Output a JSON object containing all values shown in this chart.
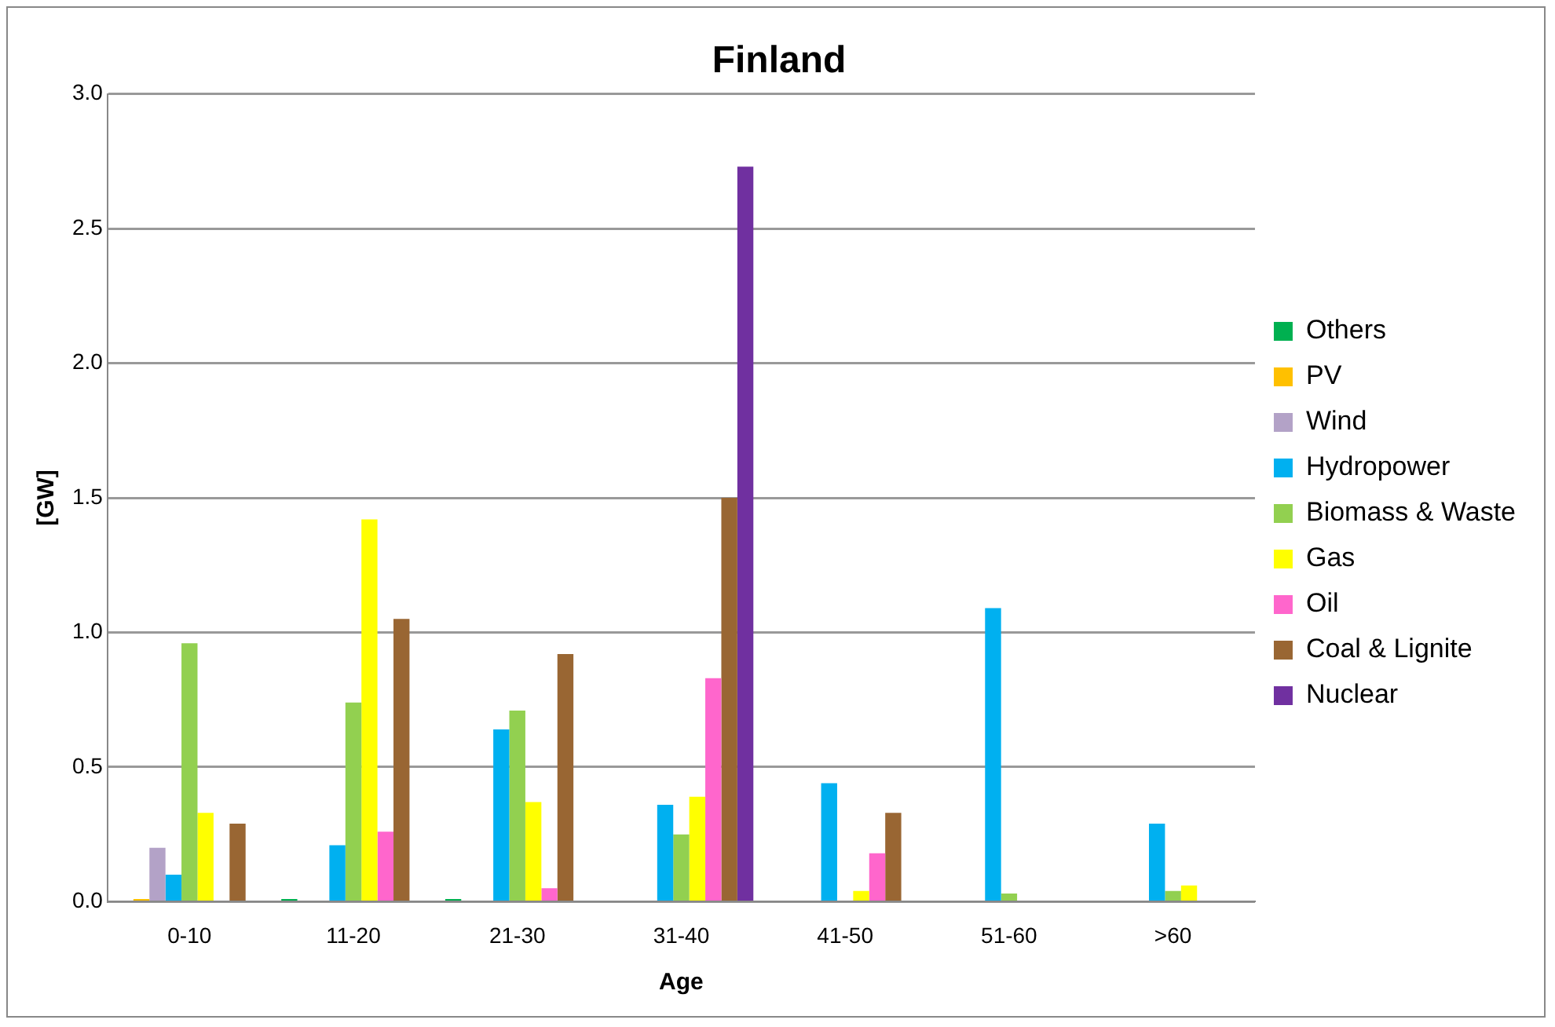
{
  "chart_data": {
    "type": "bar",
    "title": "Finland",
    "xlabel": "Age",
    "ylabel": "[GW]",
    "categories": [
      "0-10",
      "11-20",
      "21-30",
      "31-40",
      "41-50",
      "51-60",
      ">60"
    ],
    "series": [
      {
        "name": "Others",
        "color": "#00b050",
        "values": [
          0,
          0.01,
          0.01,
          0,
          0,
          0,
          0
        ]
      },
      {
        "name": "PV",
        "color": "#ffc000",
        "values": [
          0.01,
          0,
          0,
          0,
          0,
          0,
          0
        ]
      },
      {
        "name": "Wind",
        "color": "#b3a2c7",
        "values": [
          0.2,
          0,
          0,
          0,
          0,
          0,
          0
        ]
      },
      {
        "name": "Hydropower",
        "color": "#00b0f0",
        "values": [
          0.1,
          0.21,
          0.64,
          0.36,
          0.44,
          1.09,
          0.29
        ]
      },
      {
        "name": "Biomass & Waste",
        "color": "#92d050",
        "values": [
          0.96,
          0.74,
          0.71,
          0.25,
          0,
          0.03,
          0.04
        ]
      },
      {
        "name": "Gas",
        "color": "#ffff00",
        "values": [
          0.33,
          1.42,
          0.37,
          0.39,
          0.04,
          0,
          0.06
        ]
      },
      {
        "name": "Oil",
        "color": "#ff66cc",
        "values": [
          0,
          0.26,
          0.05,
          0.83,
          0.18,
          0,
          0
        ]
      },
      {
        "name": "Coal & Lignite",
        "color": "#996633",
        "values": [
          0.29,
          1.05,
          0.92,
          1.5,
          0.33,
          0,
          0
        ]
      },
      {
        "name": "Nuclear",
        "color": "#7030a0",
        "values": [
          0,
          0,
          0,
          2.73,
          0,
          0,
          0
        ]
      }
    ],
    "ylim": [
      0,
      3
    ],
    "yticks": [
      {
        "value": 0,
        "label": "0.0"
      },
      {
        "value": 0.5,
        "label": "0.5"
      },
      {
        "value": 1,
        "label": "1.0"
      },
      {
        "value": 1.5,
        "label": "1.5"
      },
      {
        "value": 2,
        "label": "2.0"
      },
      {
        "value": 2.5,
        "label": "2.5"
      },
      {
        "value": 3,
        "label": "3.0"
      }
    ],
    "grid": "y",
    "legend": "right"
  }
}
